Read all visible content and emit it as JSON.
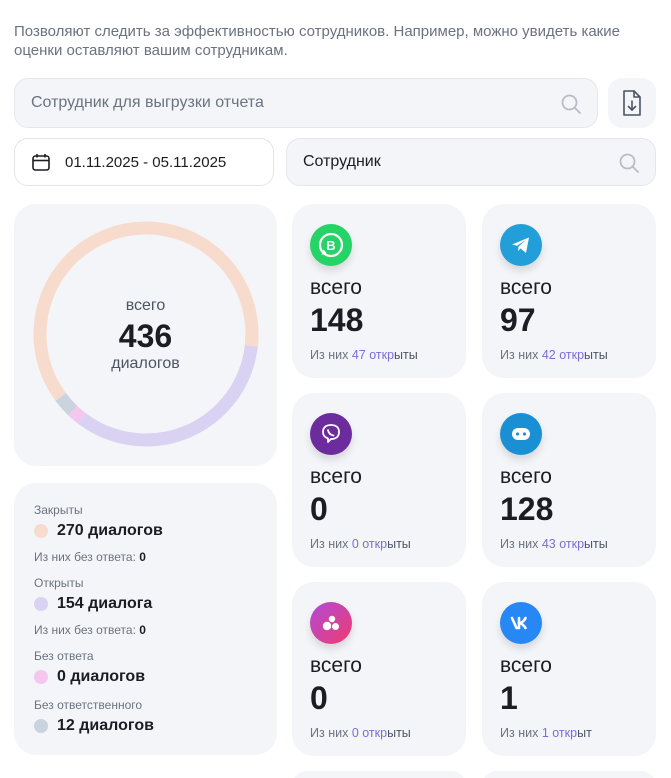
{
  "description": "Позволяют следить за эффективностью сотрудников. Например, можно увидеть какие оценки оставляют вашим сотрудникам.",
  "report_search": {
    "placeholder": "Сотрудник для выгрузки отчета"
  },
  "date_range": "01.11.2025 - 05.11.2025",
  "employee_filter": {
    "placeholder": "Сотрудник"
  },
  "summary": {
    "label_top": "всего",
    "total": "436",
    "label_bottom": "диалогов"
  },
  "donut_data": {
    "segments": [
      {
        "name": "Закрыты",
        "value": 270,
        "color": "#f7dccd"
      },
      {
        "name": "Открыты",
        "value": 154,
        "color": "#d9d2f2"
      },
      {
        "name": "Без ответа",
        "value": 0,
        "color": "#f5c6ee"
      },
      {
        "name": "Без ответственного",
        "value": 12,
        "color": "#cbd3df"
      }
    ]
  },
  "legend": [
    {
      "title": "Закрыты",
      "value": "270 диалогов",
      "color": "#f7dccd",
      "sub_label": "Из них без ответа:",
      "sub_value": "0"
    },
    {
      "title": "Открыты",
      "value": "154 диалога",
      "color": "#d9d2f2",
      "sub_label": "Из них без ответа:",
      "sub_value": "0"
    },
    {
      "title": "Без ответа",
      "value": "0 диалогов",
      "color": "#f5c6ee"
    },
    {
      "title": "Без ответственного",
      "value": "12 диалогов",
      "color": "#cbd3df"
    }
  ],
  "channels": [
    {
      "icon": "whatsapp-business-icon",
      "color": "#25d366",
      "label": "всего",
      "total": "148",
      "sub_prefix": "Из них",
      "open_count": "47",
      "open_word": "откр",
      "open_tail": "ыты"
    },
    {
      "icon": "telegram-icon",
      "color": "#229ed9",
      "label": "всего",
      "total": "97",
      "sub_prefix": "Из них",
      "open_count": "42",
      "open_word": "откр",
      "open_tail": "ыты"
    },
    {
      "icon": "viber-icon",
      "color": "#6c2c9e",
      "label": "всего",
      "total": "0",
      "sub_prefix": "Из них",
      "open_count": "0",
      "open_word": "откр",
      "open_tail": "ыты"
    },
    {
      "icon": "chatbot-icon",
      "color": "#1a8fd4",
      "label": "всего",
      "total": "128",
      "sub_prefix": "Из них",
      "open_count": "43",
      "open_word": "откр",
      "open_tail": "ыты"
    },
    {
      "icon": "chat-widget-icon",
      "color": "#e0357c",
      "label": "всего",
      "total": "0",
      "sub_prefix": "Из них",
      "open_count": "0",
      "open_word": "откр",
      "open_tail": "ыты"
    },
    {
      "icon": "vk-icon",
      "color": "#2787f5",
      "label": "всего",
      "total": "1",
      "sub_prefix": "Из них",
      "open_count": "1",
      "open_word": "откр",
      "open_tail": "ыт"
    }
  ]
}
